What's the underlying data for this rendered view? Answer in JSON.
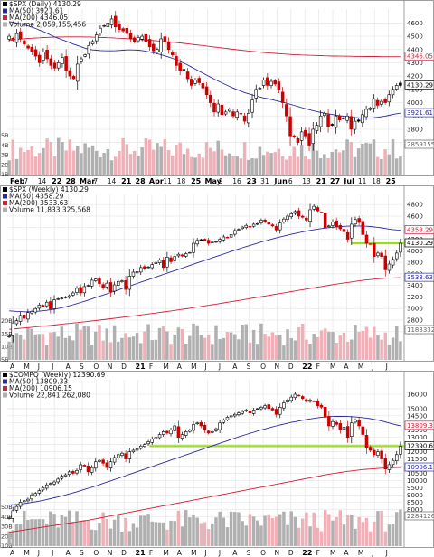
{
  "colors": {
    "up_candle": "#000000",
    "down_candle": "#cc0000",
    "ma50": "#2a2aa0",
    "ma200": "#d0203a",
    "vol_up": "#b0b0b0",
    "vol_down": "#f0b0b8",
    "highlight": "#99dd22",
    "grid": "#e6e6e6"
  },
  "chart_data": [
    {
      "type": "candlestick",
      "legend": [
        "$SPX (Daily) 4130.29",
        "MA(50) 3921.61",
        "MA(200) 4346.05",
        "Volume 2,859,155,456"
      ],
      "x_ticks": [
        "Feb",
        "7",
        "14",
        "22",
        "28",
        "Mar",
        "7",
        "14",
        "21",
        "28",
        "Apr",
        "11",
        "18",
        "25",
        "May",
        "9",
        "16",
        "23",
        "31",
        "Jun",
        "6",
        "13",
        "21",
        "27",
        "Jul",
        "11",
        "18",
        "25"
      ],
      "y_ticks": [
        "4600",
        "4500",
        "4400",
        "4300",
        "4200",
        "4100",
        "4000",
        "3900",
        "3800",
        "3700"
      ],
      "y_range": [
        3650,
        4650
      ],
      "volume_ticks": [
        "5B",
        "4B",
        "3B",
        "2B",
        "1B"
      ],
      "price_labels": [
        "4346.05",
        "4130.29",
        "3921.61",
        "2859155456"
      ],
      "close": [
        4500,
        4470,
        4520,
        4480,
        4440,
        4410,
        4380,
        4350,
        4300,
        4380,
        4330,
        4280,
        4260,
        4300,
        4340,
        4240,
        4200,
        4180,
        4290,
        4330,
        4360,
        4430,
        4460,
        4510,
        4560,
        4580,
        4600,
        4630,
        4570,
        4550,
        4540,
        4520,
        4480,
        4460,
        4490,
        4500,
        4460,
        4420,
        4390,
        4400,
        4480,
        4460,
        4400,
        4360,
        4280,
        4240,
        4250,
        4180,
        4130,
        4170,
        4150,
        4110,
        4060,
        4000,
        3930,
        3990,
        3910,
        3930,
        3950,
        3900,
        3930,
        3920,
        3860,
        3920,
        4020,
        4100,
        4110,
        4170,
        4130,
        4160,
        4140,
        4100,
        4000,
        3900,
        3750,
        3740,
        3700,
        3780,
        3750,
        3680,
        3800,
        3830,
        3900,
        3920,
        3820,
        3830,
        3900,
        3870,
        3880,
        3900,
        3800,
        3860,
        3860,
        3910,
        3950,
        3960,
        4030,
        3980,
        4010,
        4000,
        4060,
        4100,
        4130,
        4130
      ],
      "ma50": [
        4610,
        4605,
        4600,
        4593,
        4585,
        4577,
        4568,
        4558,
        4546,
        4535,
        4522,
        4508,
        4495,
        4484,
        4473,
        4462,
        4451,
        4440,
        4430,
        4420,
        4410,
        4402,
        4397,
        4395,
        4392,
        4391,
        4390,
        4390,
        4391,
        4393,
        4395,
        4397,
        4397,
        4396,
        4395,
        4392,
        4387,
        4381,
        4375,
        4368,
        4360,
        4352,
        4343,
        4334,
        4323,
        4310,
        4297,
        4283,
        4268,
        4253,
        4237,
        4222,
        4207,
        4192,
        4177,
        4163,
        4149,
        4136,
        4123,
        4110,
        4098,
        4087,
        4076,
        4067,
        4058,
        4050,
        4043,
        4036,
        4030,
        4024,
        4017,
        4010,
        4003,
        3996,
        3988,
        3980,
        3972,
        3963,
        3955,
        3947,
        3940,
        3933,
        3927,
        3921,
        3916,
        3911,
        3906,
        3902,
        3898,
        3894,
        3891,
        3888,
        3886,
        3884,
        3884,
        3885,
        3887,
        3890,
        3894,
        3899,
        3905,
        3911,
        3917,
        3921
      ],
      "ma200": [
        4470,
        4473,
        4476,
        4478,
        4481,
        4483,
        4485,
        4487,
        4488,
        4490,
        4491,
        4492,
        4493,
        4494,
        4494,
        4495,
        4495,
        4495,
        4495,
        4495,
        4494,
        4494,
        4493,
        4492,
        4491,
        4490,
        4489,
        4488,
        4486,
        4485,
        4484,
        4482,
        4480,
        4478,
        4476,
        4474,
        4472,
        4470,
        4468,
        4465,
        4463,
        4460,
        4457,
        4455,
        4452,
        4449,
        4446,
        4443,
        4440,
        4436,
        4433,
        4430,
        4426,
        4423,
        4419,
        4416,
        4412,
        4409,
        4405,
        4402,
        4398,
        4395,
        4392,
        4389,
        4386,
        4383,
        4380,
        4378,
        4375,
        4373,
        4371,
        4369,
        4367,
        4365,
        4363,
        4361,
        4360,
        4359,
        4358,
        4357,
        4356,
        4355,
        4354,
        4353,
        4352,
        4351,
        4351,
        4350,
        4350,
        4349,
        4349,
        4348,
        4348,
        4348,
        4347,
        4347,
        4347,
        4347,
        4346,
        4346,
        4346,
        4346,
        4346,
        4346
      ]
    },
    {
      "type": "candlestick",
      "legend": [
        "$SPX (Weekly) 4130.29",
        "MA(50) 4358.29",
        "MA(200) 3533.63",
        "Volume 11,833,325,568"
      ],
      "x_ticks": [
        "A",
        "M",
        "J",
        "J",
        "A",
        "S",
        "O",
        "N",
        "D",
        "21",
        "F",
        "M",
        "A",
        "M",
        "J",
        "J",
        "A",
        "S",
        "O",
        "N",
        "D",
        "22",
        "F",
        "M",
        "A",
        "M",
        "J",
        "J"
      ],
      "y_ticks": [
        "4800",
        "4600",
        "4400",
        "4200",
        "4000",
        "3800",
        "3600",
        "3400",
        "3200",
        "3000",
        "2800",
        "2600"
      ],
      "y_range": [
        2550,
        4850
      ],
      "volume_ticks": [
        "20B",
        "15B",
        "10B",
        "5B"
      ],
      "price_labels": [
        "4358.29",
        "4130.29",
        "3533.63",
        "11833325568"
      ],
      "highlight_level": 4130,
      "close": [
        2520,
        2750,
        2790,
        2880,
        2830,
        2930,
        2950,
        3000,
        3060,
        3040,
        3110,
        2990,
        3150,
        3170,
        3180,
        3200,
        3220,
        3270,
        3350,
        3270,
        3380,
        3400,
        3490,
        3510,
        3430,
        3360,
        3440,
        3290,
        3410,
        3470,
        3480,
        3330,
        3560,
        3630,
        3640,
        3710,
        3690,
        3720,
        3760,
        3800,
        3840,
        3710,
        3890,
        3810,
        3900,
        3940,
        3910,
        3950,
        3970,
        4130,
        4180,
        4190,
        4180,
        4130,
        4150,
        4160,
        4200,
        4240,
        4230,
        4280,
        4350,
        4370,
        4410,
        4440,
        4410,
        4460,
        4470,
        4530,
        4500,
        4460,
        4430,
        4360,
        4480,
        4550,
        4600,
        4640,
        4680,
        4600,
        4580,
        4530,
        4710,
        4770,
        4690,
        4660,
        4400,
        4430,
        4500,
        4420,
        4380,
        4330,
        4200,
        4460,
        4540,
        4490,
        4280,
        4130,
        4120,
        3900,
        3960,
        3900,
        3670,
        3770,
        3850,
        3960,
        4130
      ],
      "ma50": [
        2960,
        2955,
        2950,
        2948,
        2945,
        2945,
        2946,
        2950,
        2955,
        2962,
        2970,
        2978,
        2988,
        3000,
        3014,
        3030,
        3048,
        3066,
        3085,
        3105,
        3125,
        3146,
        3167,
        3190,
        3212,
        3234,
        3256,
        3278,
        3300,
        3322,
        3345,
        3368,
        3390,
        3412,
        3434,
        3456,
        3478,
        3500,
        3522,
        3545,
        3568,
        3590,
        3612,
        3634,
        3656,
        3678,
        3700,
        3722,
        3745,
        3768,
        3790,
        3812,
        3834,
        3856,
        3878,
        3900,
        3922,
        3944,
        3966,
        3988,
        4010,
        4032,
        4052,
        4072,
        4092,
        4112,
        4132,
        4152,
        4170,
        4188,
        4206,
        4222,
        4238,
        4254,
        4270,
        4285,
        4300,
        4314,
        4327,
        4340,
        4352,
        4363,
        4374,
        4383,
        4392,
        4400,
        4407,
        4414,
        4419,
        4423,
        4426,
        4428,
        4429,
        4429,
        4428,
        4425,
        4420,
        4414,
        4406,
        4397,
        4386,
        4375,
        4366,
        4360,
        4358
      ],
      "ma200": [
        2640,
        2646,
        2652,
        2658,
        2664,
        2670,
        2676,
        2682,
        2689,
        2695,
        2702,
        2708,
        2715,
        2722,
        2729,
        2736,
        2743,
        2750,
        2757,
        2764,
        2771,
        2779,
        2786,
        2793,
        2801,
        2808,
        2816,
        2824,
        2832,
        2840,
        2848,
        2856,
        2864,
        2872,
        2880,
        2889,
        2897,
        2906,
        2914,
        2923,
        2932,
        2941,
        2950,
        2959,
        2968,
        2977,
        2987,
        2996,
        3006,
        3016,
        3026,
        3036,
        3046,
        3056,
        3066,
        3076,
        3087,
        3097,
        3108,
        3118,
        3129,
        3140,
        3150,
        3161,
        3172,
        3183,
        3194,
        3205,
        3216,
        3227,
        3238,
        3249,
        3260,
        3271,
        3282,
        3293,
        3304,
        3315,
        3326,
        3337,
        3348,
        3359,
        3370,
        3381,
        3392,
        3402,
        3413,
        3423,
        3433,
        3443,
        3452,
        3461,
        3470,
        3479,
        3487,
        3495,
        3502,
        3509,
        3515,
        3520,
        3524,
        3527,
        3530,
        3532,
        3534
      ]
    },
    {
      "type": "candlestick",
      "legend": [
        "$COMPQ (Weekly) 12390.69",
        "MA(50) 13809.33",
        "MA(200) 10906.15",
        "Volume 22,841,262,080"
      ],
      "x_ticks": [
        "A",
        "M",
        "J",
        "J",
        "A",
        "S",
        "O",
        "N",
        "D",
        "21",
        "F",
        "M",
        "A",
        "M",
        "J",
        "J",
        "A",
        "S",
        "O",
        "N",
        "D",
        "22",
        "F",
        "M",
        "A",
        "M",
        "J",
        "J"
      ],
      "y_ticks": [
        "16000",
        "15000",
        "14500",
        "14000",
        "13500",
        "13000",
        "12500",
        "12000",
        "11500",
        "11000",
        "10500",
        "10000",
        "9500",
        "9000",
        "8500",
        "8000",
        "7500"
      ],
      "y_range": [
        7200,
        16500
      ],
      "volume_ticks": [
        "50B",
        "40B",
        "30B",
        "20B",
        "10B"
      ],
      "price_labels": [
        "13809.33",
        "12390.69",
        "10906.15",
        "22841262080"
      ],
      "highlight_level": 12390,
      "close": [
        7400,
        7900,
        8200,
        8500,
        8600,
        8700,
        9000,
        9100,
        9300,
        9500,
        9700,
        9800,
        9900,
        10100,
        10300,
        10400,
        10600,
        10500,
        10700,
        11100,
        11000,
        10600,
        10900,
        11300,
        11400,
        11200,
        10900,
        11300,
        11600,
        11800,
        11900,
        11500,
        12000,
        12100,
        12200,
        12400,
        12500,
        12700,
        12900,
        13000,
        13200,
        13400,
        13300,
        13500,
        13800,
        13000,
        13200,
        13400,
        13500,
        13900,
        14000,
        13800,
        13500,
        13300,
        13400,
        13600,
        14000,
        14200,
        14400,
        14500,
        14600,
        14700,
        14800,
        14900,
        14700,
        14900,
        15000,
        15100,
        15200,
        15000,
        14900,
        14600,
        15100,
        15400,
        15600,
        15800,
        16000,
        15900,
        15700,
        15500,
        15600,
        15500,
        15200,
        15100,
        14400,
        13800,
        14100,
        13900,
        13500,
        13700,
        13000,
        14000,
        14200,
        13800,
        13200,
        12300,
        12100,
        11800,
        12000,
        11500,
        10800,
        11100,
        11400,
        11800,
        12390
      ],
      "ma50": [
        8300,
        8320,
        8340,
        8370,
        8400,
        8440,
        8480,
        8520,
        8570,
        8620,
        8680,
        8740,
        8800,
        8860,
        8930,
        9000,
        9070,
        9140,
        9220,
        9300,
        9380,
        9460,
        9540,
        9620,
        9710,
        9800,
        9890,
        9980,
        10070,
        10160,
        10250,
        10340,
        10430,
        10520,
        10610,
        10700,
        10790,
        10880,
        10970,
        11060,
        11150,
        11240,
        11330,
        11420,
        11510,
        11600,
        11690,
        11780,
        11870,
        11960,
        12050,
        12140,
        12230,
        12320,
        12410,
        12500,
        12590,
        12680,
        12770,
        12860,
        12950,
        13040,
        13120,
        13200,
        13280,
        13360,
        13440,
        13520,
        13590,
        13660,
        13730,
        13800,
        13860,
        13920,
        13980,
        14040,
        14090,
        14140,
        14190,
        14240,
        14280,
        14320,
        14360,
        14390,
        14420,
        14440,
        14450,
        14460,
        14460,
        14460,
        14450,
        14440,
        14420,
        14400,
        14370,
        14340,
        14300,
        14250,
        14200,
        14140,
        14070,
        14000,
        13930,
        13860,
        13809
      ],
      "ma200": [
        6400,
        6440,
        6480,
        6520,
        6560,
        6600,
        6640,
        6680,
        6720,
        6760,
        6800,
        6840,
        6880,
        6920,
        6960,
        7000,
        7040,
        7080,
        7120,
        7160,
        7200,
        7240,
        7290,
        7340,
        7390,
        7440,
        7490,
        7540,
        7590,
        7640,
        7690,
        7740,
        7790,
        7840,
        7890,
        7940,
        7990,
        8040,
        8090,
        8140,
        8190,
        8240,
        8290,
        8340,
        8390,
        8440,
        8490,
        8540,
        8590,
        8640,
        8690,
        8740,
        8790,
        8840,
        8890,
        8940,
        8990,
        9040,
        9090,
        9140,
        9190,
        9240,
        9290,
        9340,
        9390,
        9440,
        9490,
        9540,
        9590,
        9640,
        9690,
        9740,
        9790,
        9840,
        9890,
        9940,
        9990,
        10040,
        10090,
        10140,
        10190,
        10240,
        10290,
        10340,
        10390,
        10440,
        10480,
        10520,
        10560,
        10600,
        10640,
        10670,
        10700,
        10730,
        10760,
        10780,
        10800,
        10820,
        10840,
        10860,
        10870,
        10880,
        10890,
        10900,
        10906
      ]
    }
  ]
}
